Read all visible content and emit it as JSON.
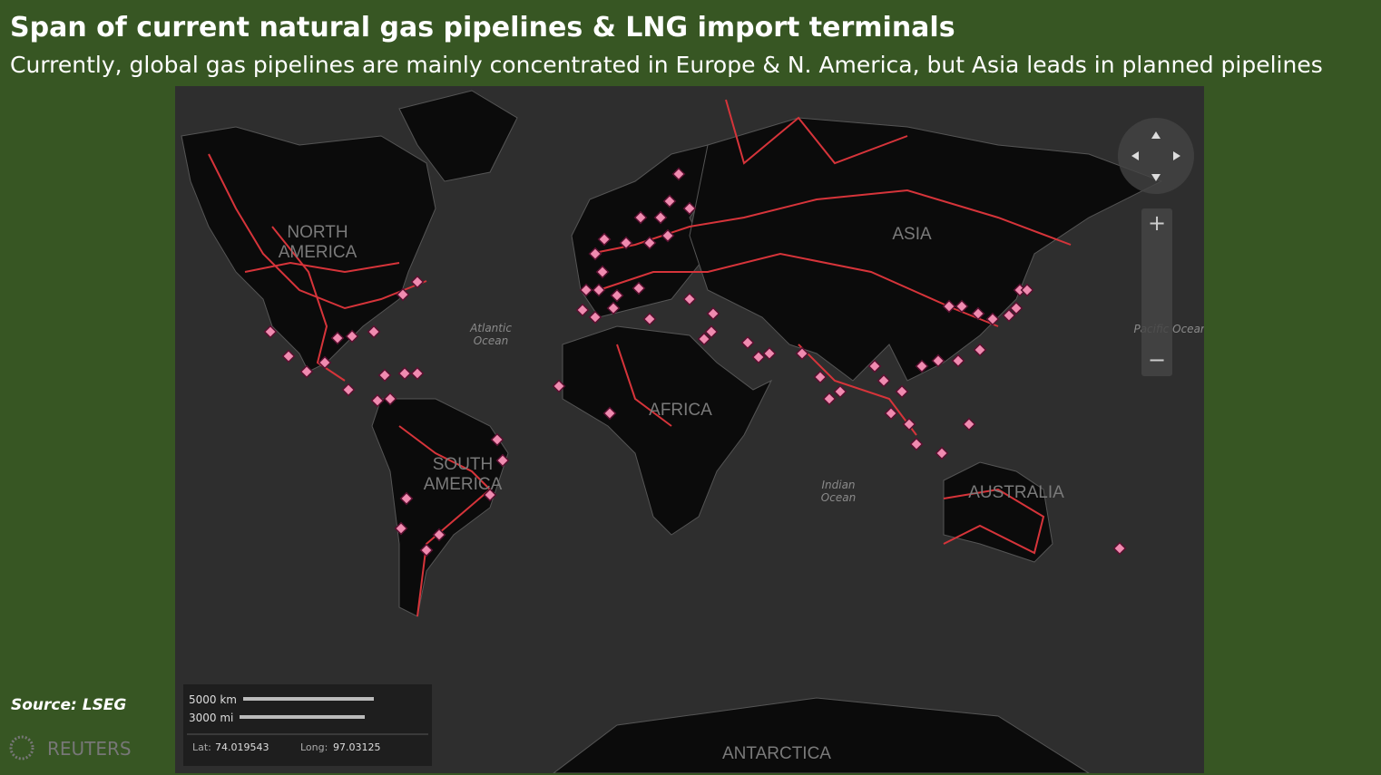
{
  "header": {
    "title": "Span of current natural gas pipelines & LNG import terminals",
    "subtitle": "Currently, global gas pipelines are mainly concentrated in Europe & N. America, but Asia leads in planned pipelines"
  },
  "map": {
    "labels": {
      "north_america": [
        "NORTH",
        "AMERICA"
      ],
      "atlantic_ocean": [
        "Atlantic",
        "Ocean"
      ],
      "south_america": [
        "SOUTH",
        "AMERICA"
      ],
      "africa": "AFRICA",
      "asia": "ASIA",
      "indian_ocean": [
        "Indian",
        "Ocean"
      ],
      "australia": "AUSTRALIA",
      "pacific_ocean": "Pacific Ocean",
      "antarctica": "ANTARCTICA"
    },
    "zoom": {
      "in": "+",
      "out": "−"
    },
    "scale": {
      "metric": "5000 km",
      "imperial": "3000 mi"
    },
    "coordinates": {
      "lat_label": "Lat:",
      "lat": 74.019543,
      "long_label": "Long:",
      "long": 97.03125
    }
  },
  "footer": {
    "source": "Source: LSEG",
    "logo": "REUTERS"
  }
}
